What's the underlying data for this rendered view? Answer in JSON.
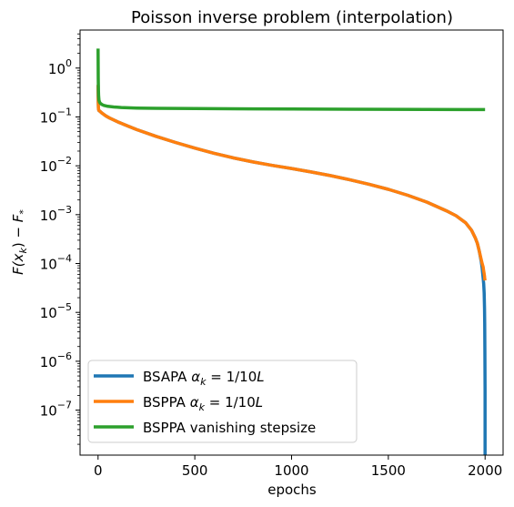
{
  "chart_data": {
    "type": "line",
    "title": "Poisson inverse problem (interpolation)",
    "xlabel": "epochs",
    "ylabel": "F(x_k) − F_*",
    "ylabel_parts": {
      "a": "F(",
      "b": "x",
      "c": "k",
      "d": ") − ",
      "e": "F",
      "f": "*"
    },
    "xscale": "linear",
    "yscale": "log",
    "xlim": [
      -93,
      2093
    ],
    "ylim": [
      1.2e-08,
      6.0
    ],
    "xticks": [
      0,
      500,
      1000,
      1500,
      2000
    ],
    "xtick_labels": [
      "0",
      "500",
      "1000",
      "1500",
      "2000"
    ],
    "yticks": [
      1e-07,
      1e-06,
      1e-05,
      0.0001,
      0.001,
      0.01,
      0.1,
      1
    ],
    "ytick_labels": [
      {
        "base": "10",
        "exp": "−7"
      },
      {
        "base": "10",
        "exp": "−6"
      },
      {
        "base": "10",
        "exp": "−5"
      },
      {
        "base": "10",
        "exp": "−4"
      },
      {
        "base": "10",
        "exp": "−3"
      },
      {
        "base": "10",
        "exp": "−2"
      },
      {
        "base": "10",
        "exp": "−1"
      },
      {
        "base": "10",
        "exp": "0"
      }
    ],
    "legend_position": "lower-left",
    "grid": false,
    "series": [
      {
        "name": "BSAPA αk = 1/10L",
        "legend": {
          "prefix": "BSAPA ",
          "alpha": "α",
          "sub": "k",
          "suffix": " = 1/10",
          "L": "L"
        },
        "color": "#1f77b4",
        "x": [
          0,
          1,
          2,
          3,
          5,
          10,
          20,
          40,
          60,
          100,
          150,
          200,
          300,
          400,
          500,
          600,
          700,
          800,
          900,
          1000,
          1100,
          1200,
          1300,
          1400,
          1500,
          1600,
          1700,
          1800,
          1850,
          1900,
          1930,
          1950,
          1960,
          1970,
          1980,
          1985,
          1990,
          1993,
          1995,
          1997,
          1998,
          1999,
          2000,
          2000
        ],
        "y": [
          0.45,
          0.2,
          0.15,
          0.14,
          0.135,
          0.13,
          0.12,
          0.105,
          0.095,
          0.08,
          0.066,
          0.055,
          0.04,
          0.03,
          0.023,
          0.018,
          0.0145,
          0.012,
          0.0102,
          0.0088,
          0.0075,
          0.0063,
          0.0052,
          0.0042,
          0.0033,
          0.0025,
          0.0018,
          0.0012,
          0.00095,
          0.00068,
          0.00048,
          0.00033,
          0.00026,
          0.00018,
          0.00011,
          8e-05,
          5e-05,
          3.8e-05,
          2.5e-05,
          1.2e-05,
          6e-06,
          1.5e-06,
          2.5e-07,
          1.2e-08
        ]
      },
      {
        "name": "BSPPA αk = 1/10L",
        "legend": {
          "prefix": "BSPPA ",
          "alpha": "α",
          "sub": "k",
          "suffix": " = 1/10",
          "L": "L"
        },
        "color": "#ff7f0e",
        "x": [
          0,
          1,
          2,
          3,
          5,
          10,
          20,
          40,
          60,
          100,
          150,
          200,
          300,
          400,
          500,
          600,
          700,
          800,
          900,
          1000,
          1100,
          1200,
          1300,
          1400,
          1500,
          1600,
          1700,
          1800,
          1850,
          1900,
          1930,
          1950,
          1960,
          1970,
          1980,
          1985,
          1990,
          1993,
          1995,
          1997,
          1998,
          1999,
          2000
        ],
        "y": [
          0.45,
          0.2,
          0.15,
          0.14,
          0.135,
          0.13,
          0.12,
          0.105,
          0.095,
          0.08,
          0.066,
          0.055,
          0.04,
          0.03,
          0.023,
          0.018,
          0.0145,
          0.012,
          0.0102,
          0.0088,
          0.0075,
          0.0063,
          0.0052,
          0.0042,
          0.0033,
          0.0025,
          0.0018,
          0.0012,
          0.00095,
          0.00068,
          0.00048,
          0.00033,
          0.00026,
          0.00018,
          0.00012,
          0.0001,
          8.5e-05,
          7e-05,
          6.2e-05,
          5.5e-05,
          5e-05,
          4.7e-05,
          4.5e-05
        ]
      },
      {
        "name": "BSPPA vanishing stepsize",
        "legend": {
          "prefix": "BSPPA vanishing stepsize",
          "alpha": "",
          "sub": "",
          "suffix": "",
          "L": ""
        },
        "color": "#2ca02c",
        "x": [
          0,
          0,
          1,
          2,
          3,
          5,
          8,
          12,
          20,
          30,
          50,
          80,
          120,
          200,
          300,
          500,
          800,
          1000,
          1500,
          2000
        ],
        "y": [
          2.5,
          2.5,
          0.6,
          0.35,
          0.27,
          0.22,
          0.2,
          0.19,
          0.18,
          0.172,
          0.165,
          0.16,
          0.156,
          0.152,
          0.15,
          0.148,
          0.146,
          0.145,
          0.143,
          0.141
        ]
      }
    ]
  }
}
